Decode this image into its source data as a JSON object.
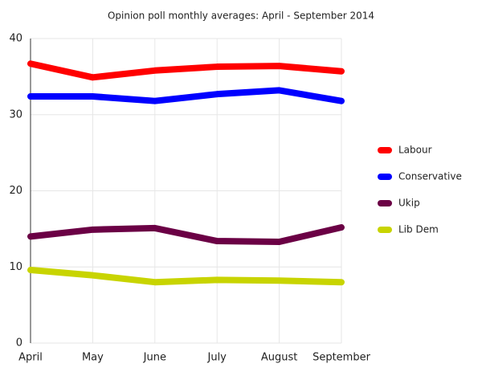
{
  "chart_data": {
    "type": "line",
    "title": "Opinion poll monthly averages: April - September 2014",
    "categories": [
      "April",
      "May",
      "June",
      "July",
      "August",
      "September"
    ],
    "series": [
      {
        "name": "Labour",
        "color": "#ff0000",
        "values": [
          36.7,
          34.9,
          35.8,
          36.3,
          36.4,
          35.7
        ]
      },
      {
        "name": "Conservative",
        "color": "#0000ff",
        "values": [
          32.4,
          32.4,
          31.8,
          32.7,
          33.2,
          31.8
        ]
      },
      {
        "name": "Ukip",
        "color": "#6b0045",
        "values": [
          14.0,
          14.9,
          15.1,
          13.4,
          13.3,
          15.2
        ]
      },
      {
        "name": "Lib Dem",
        "color": "#c8d400",
        "values": [
          9.6,
          8.9,
          8.0,
          8.3,
          8.2,
          8.0
        ]
      }
    ],
    "ylim": [
      0,
      40
    ],
    "yticks": [
      0,
      10,
      20,
      30,
      40
    ],
    "grid": true,
    "legend": "right"
  }
}
